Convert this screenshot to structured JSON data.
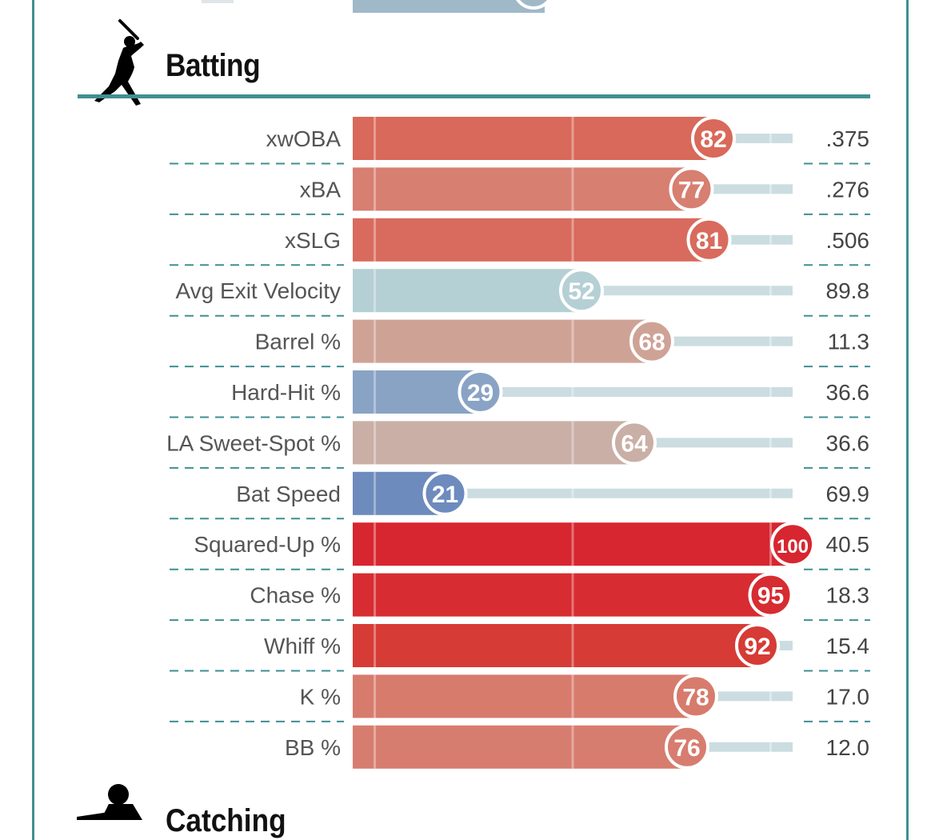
{
  "section": {
    "title": "Batting",
    "icon": "batter-silhouette-icon",
    "accent_color": "#3f8f92"
  },
  "next_section": {
    "title": "Catching",
    "icon": "catcher-silhouette-icon"
  },
  "chart_data": {
    "type": "bar",
    "orientation": "horizontal",
    "xlim": [
      0,
      100
    ],
    "categories": [
      "xwOBA",
      "xBA",
      "xSLG",
      "Avg Exit Velocity",
      "Barrel %",
      "Hard-Hit %",
      "LA Sweet-Spot %",
      "Bat Speed",
      "Squared-Up %",
      "Chase %",
      "Whiff %",
      "K %",
      "BB %"
    ],
    "values": [
      82,
      77,
      81,
      52,
      68,
      29,
      64,
      21,
      100,
      95,
      92,
      78,
      76
    ],
    "stat_values": [
      ".375",
      ".276",
      ".506",
      "89.8",
      "11.3",
      "36.6",
      "36.6",
      "69.9",
      "40.5",
      "18.3",
      "15.4",
      "17.0",
      "12.0"
    ],
    "colors": [
      "#d9695a",
      "#d77f71",
      "#d86b5d",
      "#b5d0d4",
      "#cfa296",
      "#89a3c5",
      "#c9afa6",
      "#6d8bbd",
      "#d7262f",
      "#d72c31",
      "#d63b35",
      "#d77b6d",
      "#d77d6f"
    ],
    "reference_lines": [
      5,
      50,
      95
    ],
    "title": "",
    "xlabel": "",
    "ylabel": ""
  }
}
